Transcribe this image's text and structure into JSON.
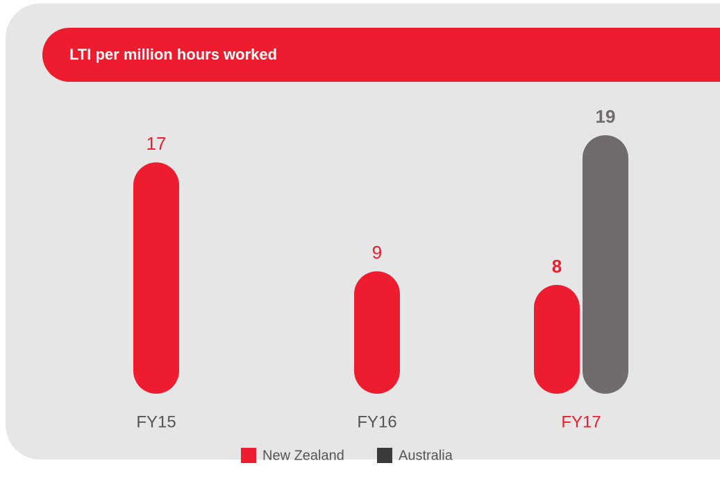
{
  "chart_data": {
    "type": "bar",
    "title": "LTI per million hours worked",
    "categories": [
      "FY15",
      "FY16",
      "FY17"
    ],
    "series": [
      {
        "name": "New Zealand",
        "color": "#ed1c2e",
        "legend_color": "#ed1c2e",
        "values": [
          17,
          9,
          8
        ]
      },
      {
        "name": "Australia",
        "color": "#716c6b",
        "legend_color": "#3b3a3a",
        "values": [
          null,
          null,
          19
        ]
      }
    ],
    "ylim": [
      0,
      19
    ],
    "legend": "bottom"
  }
}
